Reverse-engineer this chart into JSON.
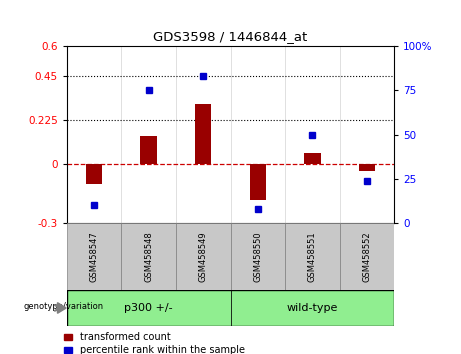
{
  "title": "GDS3598 / 1446844_at",
  "samples": [
    "GSM458547",
    "GSM458548",
    "GSM458549",
    "GSM458550",
    "GSM458551",
    "GSM458552"
  ],
  "red_values": [
    -0.1,
    0.145,
    0.305,
    -0.185,
    0.055,
    -0.038
  ],
  "blue_values": [
    10,
    75,
    83,
    8,
    50,
    24
  ],
  "ylim_left": [
    -0.3,
    0.6
  ],
  "ylim_right": [
    0,
    100
  ],
  "yticks_left": [
    -0.3,
    0.0,
    0.225,
    0.45,
    0.6
  ],
  "yticks_right": [
    0,
    25,
    50,
    75,
    100
  ],
  "ytick_left_labels": [
    "-0.3",
    "0",
    "0.225",
    "0.45",
    "0.6"
  ],
  "ytick_right_labels": [
    "0",
    "25",
    "50",
    "75",
    "100%"
  ],
  "hlines": [
    0.225,
    0.45
  ],
  "bar_color": "#990000",
  "dot_color": "#0000CC",
  "zero_line_color": "#CC0000",
  "legend_labels": [
    "transformed count",
    "percentile rank within the sample"
  ],
  "genotype_label": "genotype/variation",
  "group1_label": "p300 +/-",
  "group2_label": "wild-type",
  "group_color": "#90EE90",
  "bar_width": 0.3,
  "sample_box_color": "#c8c8c8"
}
